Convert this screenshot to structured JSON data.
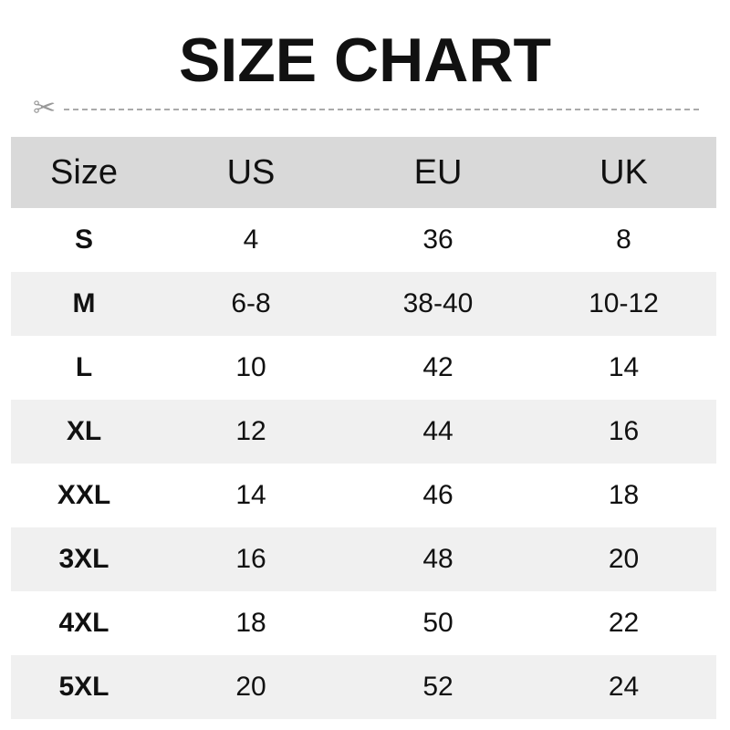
{
  "title": "SIZE CHART",
  "icons": {
    "cut_line": "scissors-icon"
  },
  "colors": {
    "header_bg": "#d9d9d9",
    "alt_row_bg": "#f0f0f0"
  },
  "table": {
    "headers": [
      "Size",
      "US",
      "EU",
      "UK"
    ],
    "rows": [
      [
        "S",
        "4",
        "36",
        "8"
      ],
      [
        "M",
        "6-8",
        "38-40",
        "10-12"
      ],
      [
        "L",
        "10",
        "42",
        "14"
      ],
      [
        "XL",
        "12",
        "44",
        "16"
      ],
      [
        "XXL",
        "14",
        "46",
        "18"
      ],
      [
        "3XL",
        "16",
        "48",
        "20"
      ],
      [
        "4XL",
        "18",
        "50",
        "22"
      ],
      [
        "5XL",
        "20",
        "52",
        "24"
      ]
    ]
  }
}
